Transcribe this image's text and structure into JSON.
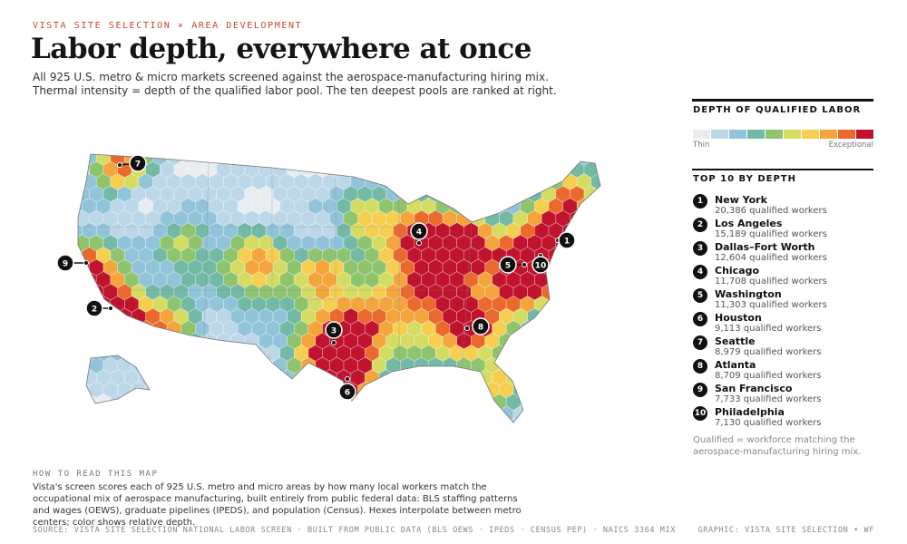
{
  "header": {
    "kicker": "VISTA SITE SELECTION × AREA DEVELOPMENT",
    "title": "Labor depth, everywhere at once",
    "subtitle": [
      "All 925 U.S. metro & micro markets screened against the aerospace-manufacturing hiring mix.",
      "Thermal intensity = depth of the qualified labor pool. The ten deepest pools are ranked at right."
    ]
  },
  "legend": {
    "title": "DEPTH OF QUALIFIED LABOR",
    "low": "Thin",
    "high": "Exceptional",
    "colors": [
      "#e9edf0",
      "#bcd7e8",
      "#91c4da",
      "#72b9a6",
      "#8fc46e",
      "#d5dc62",
      "#f6cf50",
      "#f4a63c",
      "#ea6a2e",
      "#c0132e"
    ]
  },
  "ranking": {
    "title": "TOP 10 BY DEPTH",
    "items": [
      {
        "rank": "1",
        "metro": "New York",
        "workers": "20,386 qualified workers"
      },
      {
        "rank": "2",
        "metro": "Los Angeles",
        "workers": "15,189 qualified workers"
      },
      {
        "rank": "3",
        "metro": "Dallas–Fort Worth",
        "workers": "12,604 qualified workers"
      },
      {
        "rank": "4",
        "metro": "Chicago",
        "workers": "11,708 qualified workers"
      },
      {
        "rank": "5",
        "metro": "Washington",
        "workers": "11,303 qualified workers"
      },
      {
        "rank": "6",
        "metro": "Houston",
        "workers": "9,113 qualified workers"
      },
      {
        "rank": "7",
        "metro": "Seattle",
        "workers": "8,979 qualified workers"
      },
      {
        "rank": "8",
        "metro": "Atlanta",
        "workers": "8,709 qualified workers"
      },
      {
        "rank": "9",
        "metro": "San Francisco",
        "workers": "7,733 qualified workers"
      },
      {
        "rank": "10",
        "metro": "Philadelphia",
        "workers": "7,130 qualified workers"
      }
    ],
    "note": "Qualified = workforce matching the aerospace-manufacturing hiring mix."
  },
  "how_to": {
    "title": "HOW TO READ THIS MAP",
    "text": "Vista's screen scores each of 925 U.S. metro and micro areas by how many local workers match the occupational mix of aerospace manufacturing, built entirely from public federal data: BLS staffing patterns and wages (OEWS), graduate pipelines (IPEDS), and population (Census). Hexes interpolate between metro centers; color shows relative depth."
  },
  "footer": {
    "source": "SOURCE: VISTA SITE SELECTION NATIONAL LABOR SCREEN · BUILT FROM PUBLIC DATA (BLS OEWS · IPEDS · CENSUS PEP) · NAICS 3364 MIX",
    "credit": "GRAPHIC: VISTA SITE SELECTION • WF"
  }
}
